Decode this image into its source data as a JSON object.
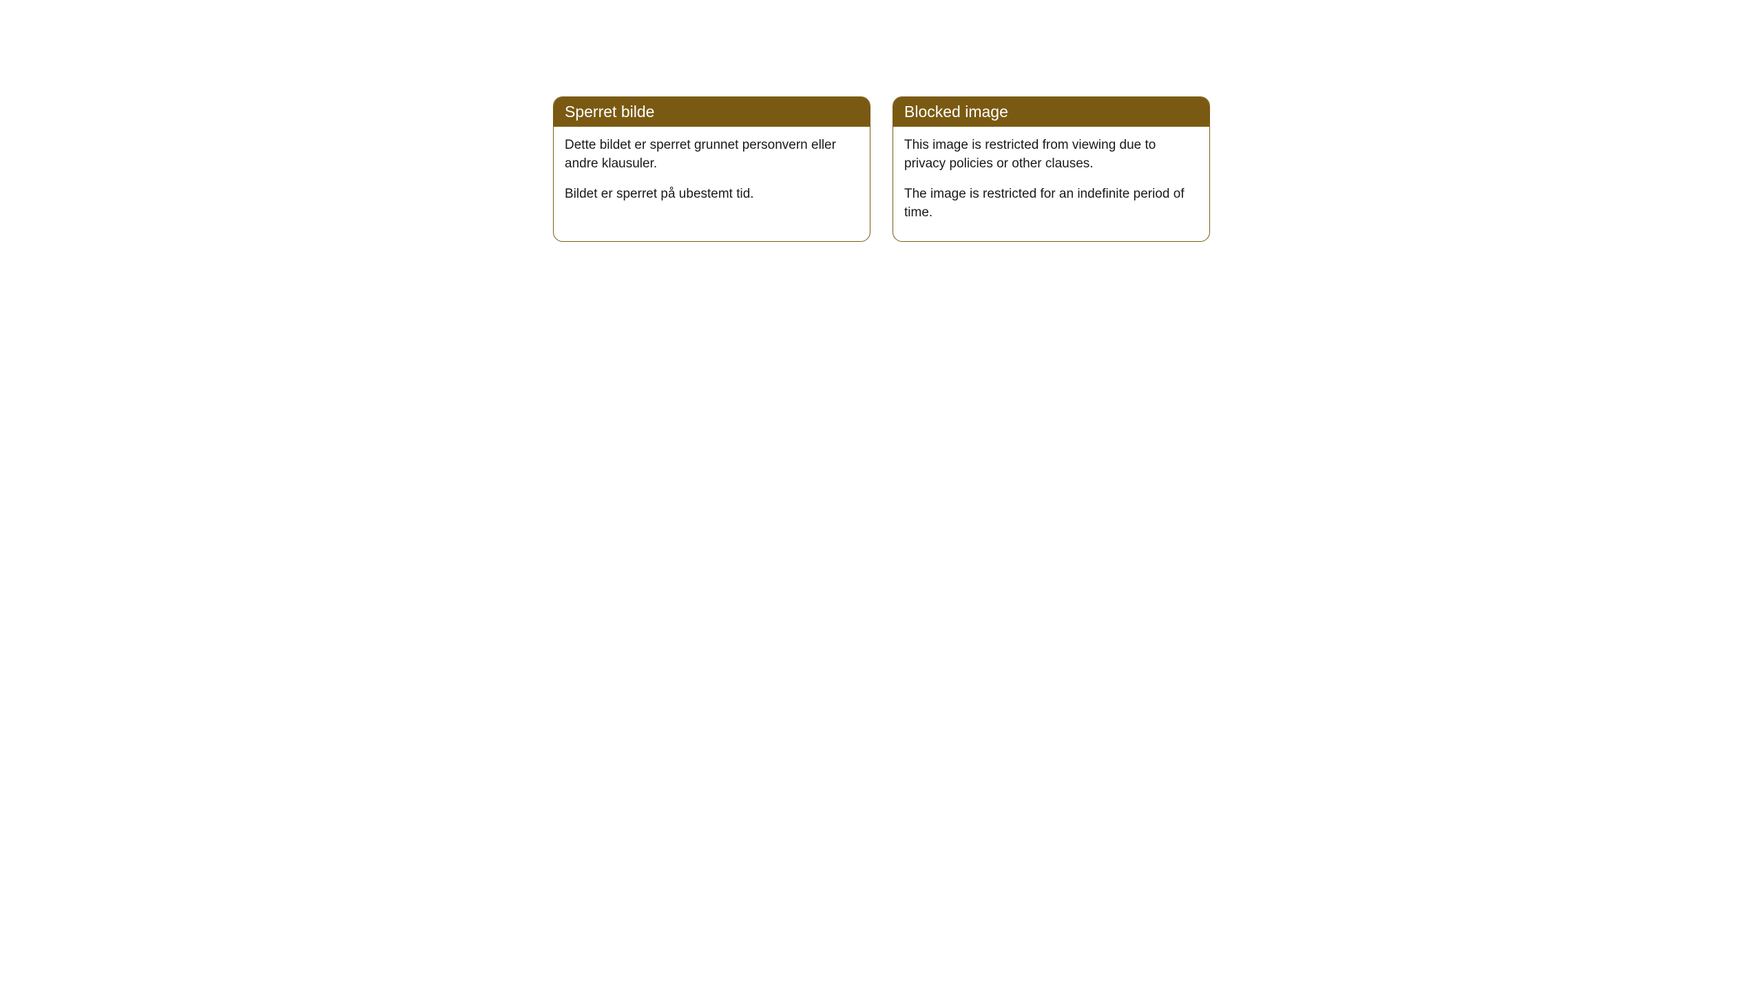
{
  "notices": {
    "left": {
      "title": "Sperret bilde",
      "paragraph1": "Dette bildet er sperret grunnet personvern eller andre klausuler.",
      "paragraph2": "Bildet er sperret på ubestemt tid."
    },
    "right": {
      "title": "Blocked image",
      "paragraph1": "This image is restricted from viewing due to privacy policies or other clauses.",
      "paragraph2": "The image is restricted for an indefinite period of time."
    }
  },
  "colors": {
    "header_bg": "#7a5a12",
    "header_text": "#ffffff",
    "border": "#7a5a12",
    "body_bg": "#ffffff",
    "body_text": "#1a1a1a",
    "page_bg": "#ffffff"
  },
  "typography": {
    "title_fontsize": 23,
    "body_fontsize": 19,
    "font_family": "Arial, Helvetica, sans-serif"
  },
  "layout": {
    "border_radius": 14,
    "card_gap": 32,
    "container_width": 954
  }
}
